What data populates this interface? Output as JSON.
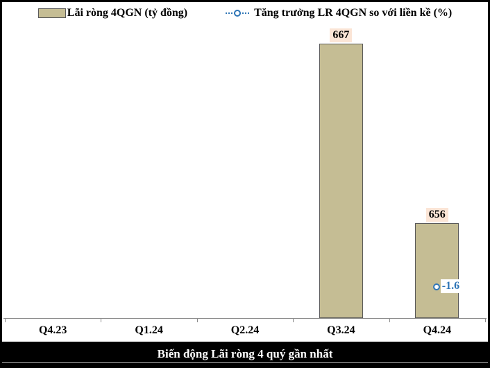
{
  "legend": {
    "bar_label": "Lãi ròng 4QGN (tỷ đồng)",
    "line_label": "Tăng trưởng LR 4QGN so với liền kề (%)"
  },
  "title": "Biến động Lãi ròng 4 quý gần nhất",
  "colors": {
    "bar_fill": "#C5BD94",
    "bar_border": "#595959",
    "bar_value_label_bg": "#FBE5D6",
    "line_series": "#2E75B6",
    "growth_label_bg": "#FFFFFF",
    "axis": "#8C8C8C",
    "title_band_bg": "#000000",
    "title_band_text": "#FFFFFF"
  },
  "chart_data": {
    "type": "bar",
    "categories": [
      "Q4.23",
      "Q1.24",
      "Q2.24",
      "Q3.24",
      "Q4.24"
    ],
    "series": [
      {
        "name": "Lãi ròng 4QGN (tỷ đồng)",
        "type": "bar",
        "values": [
          null,
          null,
          null,
          667,
          656
        ]
      },
      {
        "name": "Tăng trưởng LR 4QGN so với liền kề (%)",
        "type": "line",
        "values": [
          null,
          null,
          null,
          null,
          -1.6
        ]
      }
    ],
    "title": "Biến động Lãi ròng 4 quý gần nhất",
    "xlabel": "",
    "ylabel": "",
    "value_axis_visible": false,
    "grid": false,
    "legend_position": "top",
    "data_labels": true
  }
}
